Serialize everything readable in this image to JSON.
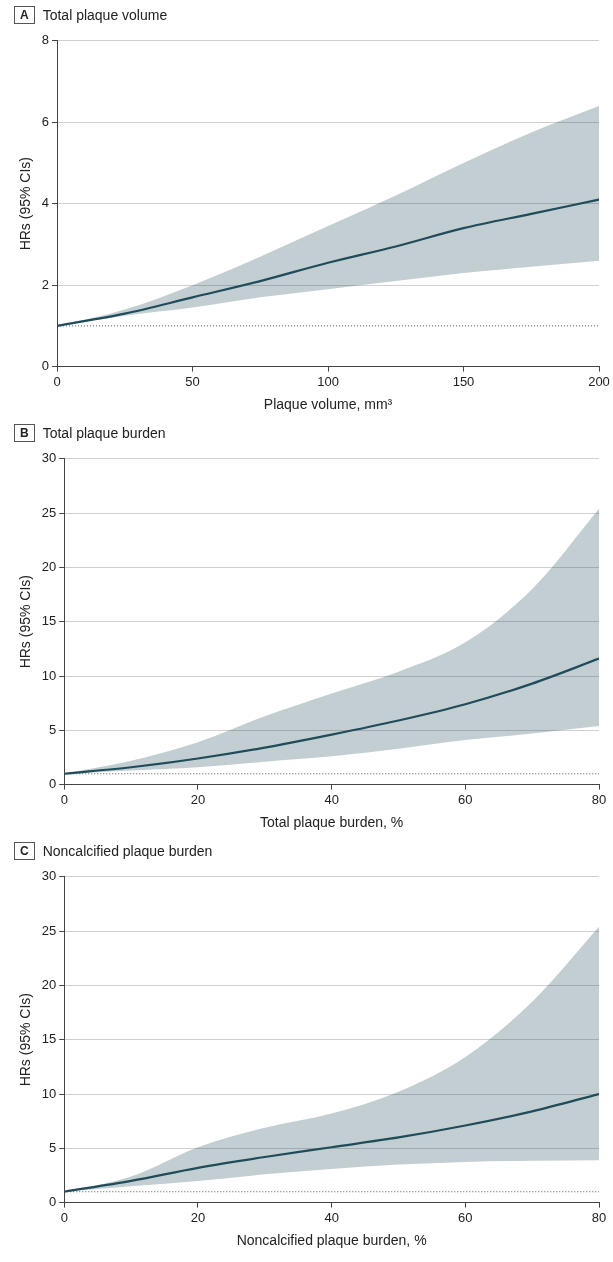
{
  "chart_data": [
    {
      "type": "line",
      "title": "Total plaque volume",
      "annotations": [
        "A"
      ],
      "xlabel": "Plaque volume, mm³",
      "ylabel": "HRs (95% CIs)",
      "xlim": [
        0,
        200
      ],
      "xticks": [
        0,
        50,
        100,
        150,
        200
      ],
      "ylim": [
        0,
        8
      ],
      "yticks": [
        0,
        2,
        4,
        6,
        8
      ],
      "grid": "y",
      "marker": "none",
      "line_style": "solid",
      "x": [
        0,
        25,
        50,
        75,
        100,
        125,
        150,
        175,
        200
      ],
      "series": [
        {
          "color": "#1f4b5a",
          "values": [
            1,
            1.3,
            1.7,
            2.1,
            2.55,
            2.95,
            3.4,
            3.75,
            4.1
          ],
          "lower": [
            1,
            1.25,
            1.45,
            1.7,
            1.9,
            2.1,
            2.3,
            2.45,
            2.6
          ],
          "upper": [
            1,
            1.4,
            2.0,
            2.7,
            3.45,
            4.2,
            5.0,
            5.75,
            6.4
          ]
        }
      ],
      "ref_lines": [
        {
          "axis": "y",
          "value": 1,
          "color": "#555555",
          "line_style": "dotted"
        }
      ]
    },
    {
      "type": "line",
      "title": "Total plaque burden",
      "annotations": [
        "B"
      ],
      "xlabel": "Total plaque burden, %",
      "ylabel": "HRs (95% CIs)",
      "xlim": [
        0,
        80
      ],
      "xticks": [
        0,
        20,
        40,
        60,
        80
      ],
      "ylim": [
        0,
        30
      ],
      "yticks": [
        0,
        5,
        10,
        15,
        20,
        25,
        30
      ],
      "grid": "y",
      "marker": "none",
      "line_style": "solid",
      "x": [
        0,
        10,
        20,
        30,
        40,
        50,
        60,
        70,
        80
      ],
      "series": [
        {
          "color": "#1f4b5a",
          "values": [
            1,
            1.6,
            2.4,
            3.4,
            4.6,
            5.9,
            7.4,
            9.3,
            11.6
          ],
          "lower": [
            1,
            1.3,
            1.6,
            2.1,
            2.6,
            3.3,
            4.1,
            4.7,
            5.4
          ],
          "upper": [
            1,
            2.2,
            3.9,
            6.3,
            8.4,
            10.4,
            13.1,
            18,
            25.4
          ]
        }
      ],
      "ref_lines": [
        {
          "axis": "y",
          "value": 1,
          "color": "#555555",
          "line_style": "dotted"
        }
      ]
    },
    {
      "type": "line",
      "title": "Noncalcified plaque burden",
      "annotations": [
        "C"
      ],
      "xlabel": "Noncalcified plaque burden, %",
      "ylabel": "HRs (95% CIs)",
      "xlim": [
        0,
        80
      ],
      "xticks": [
        0,
        20,
        40,
        60,
        80
      ],
      "ylim": [
        0,
        30
      ],
      "yticks": [
        0,
        5,
        10,
        15,
        20,
        25,
        30
      ],
      "grid": "y",
      "marker": "none",
      "line_style": "solid",
      "x": [
        0,
        10,
        20,
        30,
        40,
        50,
        60,
        70,
        80
      ],
      "series": [
        {
          "color": "#1f4b5a",
          "values": [
            1,
            2.0,
            3.2,
            4.2,
            5.1,
            6.0,
            7.1,
            8.4,
            10
          ],
          "lower": [
            1,
            1.5,
            2.0,
            2.6,
            3.1,
            3.5,
            3.75,
            3.85,
            3.9
          ],
          "upper": [
            1,
            2.4,
            5.1,
            6.9,
            8.2,
            10.2,
            13.4,
            18.5,
            25.4
          ]
        }
      ],
      "ref_lines": [
        {
          "axis": "y",
          "value": 1,
          "color": "#555555",
          "line_style": "dotted"
        }
      ]
    }
  ]
}
